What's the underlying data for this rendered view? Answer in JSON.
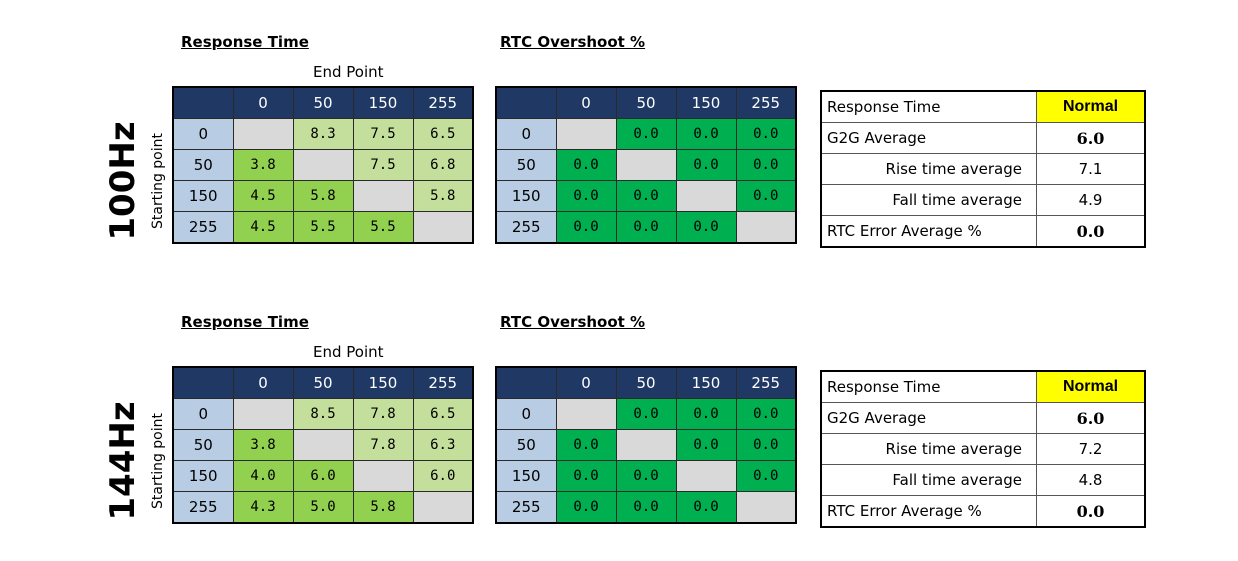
{
  "sections": [
    {
      "refresh": "100Hz",
      "response_title": "Response Time",
      "overshoot_title": "RTC Overshoot %",
      "end_point_label": "End Point",
      "starting_point_label": "Starting point",
      "columns": [
        "0",
        "50",
        "150",
        "255"
      ],
      "response_rows": [
        {
          "label": "0",
          "cells": [
            "",
            "8.3",
            "7.5",
            "6.5"
          ]
        },
        {
          "label": "50",
          "cells": [
            "3.8",
            "",
            "7.5",
            "6.8"
          ]
        },
        {
          "label": "150",
          "cells": [
            "4.5",
            "5.8",
            "",
            "5.8"
          ]
        },
        {
          "label": "255",
          "cells": [
            "4.5",
            "5.5",
            "5.5",
            ""
          ]
        }
      ],
      "overshoot_rows": [
        {
          "label": "0",
          "cells": [
            "",
            "0.0",
            "0.0",
            "0.0"
          ]
        },
        {
          "label": "50",
          "cells": [
            "0.0",
            "",
            "0.0",
            "0.0"
          ]
        },
        {
          "label": "150",
          "cells": [
            "0.0",
            "0.0",
            "",
            "0.0"
          ]
        },
        {
          "label": "255",
          "cells": [
            "0.0",
            "0.0",
            "0.0",
            ""
          ]
        }
      ],
      "summary": {
        "header_label": "Response Time",
        "mode": "Normal",
        "g2g_label": "G2G Average",
        "g2g_value": "6.0",
        "rise_label": "Rise time average",
        "rise_value": "7.1",
        "fall_label": "Fall time average",
        "fall_value": "4.9",
        "rtc_label": "RTC Error Average %",
        "rtc_value": "0.0"
      }
    },
    {
      "refresh": "144Hz",
      "response_title": "Response Time",
      "overshoot_title": "RTC Overshoot %",
      "end_point_label": "End Point",
      "starting_point_label": "Starting point",
      "columns": [
        "0",
        "50",
        "150",
        "255"
      ],
      "response_rows": [
        {
          "label": "0",
          "cells": [
            "",
            "8.5",
            "7.8",
            "6.5"
          ]
        },
        {
          "label": "50",
          "cells": [
            "3.8",
            "",
            "7.8",
            "6.3"
          ]
        },
        {
          "label": "150",
          "cells": [
            "4.0",
            "6.0",
            "",
            "6.0"
          ]
        },
        {
          "label": "255",
          "cells": [
            "4.3",
            "5.0",
            "5.8",
            ""
          ]
        }
      ],
      "overshoot_rows": [
        {
          "label": "0",
          "cells": [
            "",
            "0.0",
            "0.0",
            "0.0"
          ]
        },
        {
          "label": "50",
          "cells": [
            "0.0",
            "",
            "0.0",
            "0.0"
          ]
        },
        {
          "label": "150",
          "cells": [
            "0.0",
            "0.0",
            "",
            "0.0"
          ]
        },
        {
          "label": "255",
          "cells": [
            "0.0",
            "0.0",
            "0.0",
            ""
          ]
        }
      ],
      "summary": {
        "header_label": "Response Time",
        "mode": "Normal",
        "g2g_label": "G2G Average",
        "g2g_value": "6.0",
        "rise_label": "Rise time average",
        "rise_value": "7.2",
        "fall_label": "Fall time average",
        "fall_value": "4.8",
        "rtc_label": "RTC Error Average %",
        "rtc_value": "0.0"
      }
    }
  ],
  "colors": {
    "header_navy": "#1f3864",
    "row_header_blue": "#b8cce4",
    "empty_gray": "#d9d9d9",
    "light_green": "#c4df9b",
    "mid_green": "#92d050",
    "dark_green": "#00b050",
    "normal_yellow": "#ffff00"
  }
}
